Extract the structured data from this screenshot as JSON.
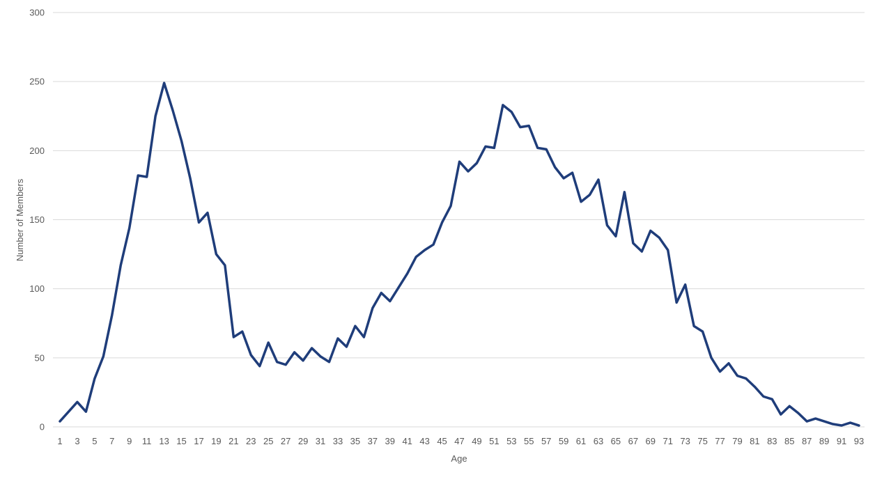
{
  "chart_data": {
    "type": "line",
    "title": "",
    "xlabel": "Age",
    "ylabel": "Number of Members",
    "ylim": [
      0,
      300
    ],
    "y_ticks": [
      0,
      50,
      100,
      150,
      200,
      250,
      300
    ],
    "x_tick_labels": [
      1,
      3,
      5,
      7,
      9,
      11,
      13,
      15,
      17,
      19,
      21,
      23,
      25,
      27,
      29,
      31,
      33,
      35,
      37,
      39,
      41,
      43,
      45,
      47,
      49,
      51,
      53,
      55,
      57,
      59,
      61,
      63,
      65,
      67,
      69,
      71,
      73,
      75,
      77,
      79,
      81,
      83,
      85,
      87,
      89,
      91,
      93
    ],
    "grid": {
      "horizontal": true,
      "vertical": false
    },
    "legend": "none",
    "line_color": "#1f3d7a",
    "grid_color": "#d9d9d9",
    "series": [
      {
        "x": [
          1,
          2,
          3,
          4,
          5,
          6,
          7,
          8,
          9,
          10,
          11,
          12,
          13,
          14,
          15,
          16,
          17,
          18,
          19,
          20,
          21,
          22,
          23,
          24,
          25,
          26,
          27,
          28,
          29,
          30,
          31,
          32,
          33,
          34,
          35,
          36,
          37,
          38,
          39,
          40,
          41,
          42,
          43,
          44,
          45,
          46,
          47,
          48,
          49,
          50,
          51,
          52,
          53,
          54,
          55,
          56,
          57,
          58,
          59,
          60,
          61,
          62,
          63,
          64,
          65,
          66,
          67,
          68,
          69,
          70,
          71,
          72,
          73,
          74,
          75,
          76,
          77,
          78,
          79,
          80,
          81,
          82,
          83,
          84,
          85,
          86,
          87,
          88,
          89,
          90,
          91,
          92,
          93
        ],
        "values": [
          4,
          11,
          18,
          11,
          35,
          51,
          81,
          117,
          144,
          182,
          181,
          225,
          249,
          229,
          207,
          180,
          148,
          155,
          125,
          117,
          65,
          69,
          52,
          44,
          61,
          47,
          45,
          54,
          48,
          57,
          51,
          47,
          64,
          58,
          73,
          65,
          86,
          97,
          91,
          101,
          111,
          123,
          128,
          132,
          148,
          160,
          192,
          185,
          191,
          203,
          202,
          233,
          228,
          217,
          218,
          202,
          201,
          188,
          180,
          184,
          163,
          168,
          179,
          146,
          138,
          170,
          133,
          127,
          142,
          137,
          128,
          90,
          103,
          73,
          69,
          50,
          40,
          46,
          37,
          35,
          29,
          22,
          20,
          9,
          15,
          10,
          4,
          6,
          4,
          2,
          1,
          3,
          1
        ]
      }
    ]
  }
}
